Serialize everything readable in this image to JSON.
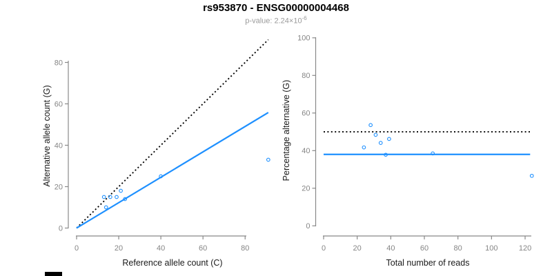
{
  "figure": {
    "title": "rs953870 - ENSG00000004468",
    "subtitle": {
      "prefix": "p-value: 2.24×10",
      "exponent": "-6"
    }
  },
  "colors": {
    "accent_blue": "#1E90FF",
    "dotted_line": "#000000",
    "axis_line": "#888888",
    "tick_label": "#858585",
    "axis_title": "#1a1a1a",
    "subtitle_gray": "#9a9a9a"
  },
  "chart_data": [
    {
      "type": "scatter",
      "panel": "allele-counts",
      "xlabel": "Reference allele count (C)",
      "ylabel": "Alternative allele count (G)",
      "xticks": [
        0,
        20,
        40,
        60,
        80
      ],
      "yticks": [
        0,
        20,
        40,
        60,
        80
      ],
      "xlim": [
        0,
        91
      ],
      "ylim": [
        0,
        91
      ],
      "grid": false,
      "points": [
        [
          13,
          15
        ],
        [
          14,
          10
        ],
        [
          16,
          15
        ],
        [
          19,
          15
        ],
        [
          21,
          18
        ],
        [
          23,
          14
        ],
        [
          40,
          25
        ],
        [
          91,
          33
        ]
      ],
      "lines": [
        {
          "name": "identity-line",
          "style": "dotted",
          "color": "#000000",
          "from": [
            0,
            0
          ],
          "to": [
            91,
            91
          ]
        },
        {
          "name": "regression-line",
          "style": "solid",
          "color": "#1E90FF",
          "from": [
            0,
            0
          ],
          "to": [
            91,
            55.8
          ]
        }
      ]
    },
    {
      "type": "scatter",
      "panel": "percentage-vs-reads",
      "xlabel": "Total number of reads",
      "ylabel": "Percentage alternative (G)",
      "xticks": [
        0,
        20,
        40,
        60,
        80,
        100,
        120
      ],
      "yticks": [
        0,
        20,
        40,
        60,
        80,
        100
      ],
      "xlim": [
        0,
        124
      ],
      "ylim": [
        0,
        100
      ],
      "grid": false,
      "points": [
        [
          24,
          41.7
        ],
        [
          28,
          53.6
        ],
        [
          31,
          48.4
        ],
        [
          34,
          44.1
        ],
        [
          37,
          37.8
        ],
        [
          39,
          46.2
        ],
        [
          65,
          38.5
        ],
        [
          124,
          26.6
        ]
      ],
      "lines": [
        {
          "name": "fifty-percent-line",
          "style": "dotted",
          "color": "#000000",
          "from": [
            0,
            50
          ],
          "to": [
            123,
            50
          ]
        },
        {
          "name": "mean-percentage-line",
          "style": "solid",
          "color": "#1E90FF",
          "from": [
            0,
            38
          ],
          "to": [
            123,
            38
          ]
        }
      ]
    }
  ]
}
